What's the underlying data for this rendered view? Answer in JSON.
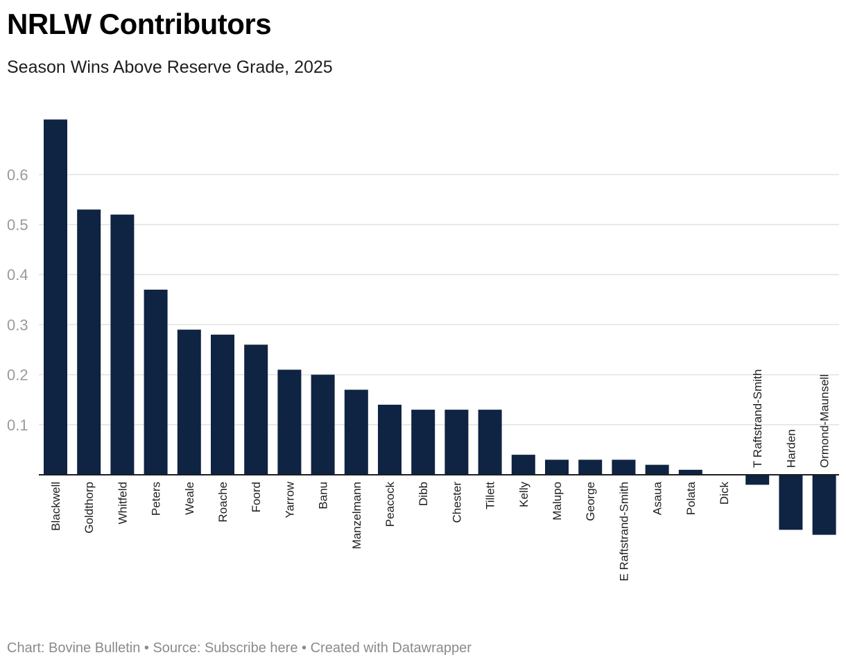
{
  "header": {
    "title": "NRLW Contributors",
    "subtitle": "Season Wins Above Reserve Grade, 2025"
  },
  "footer": {
    "chart_credit": "Chart: Bovine Bulletin",
    "separator": " • ",
    "source_label": "Source: ",
    "source_link": "Subscribe here",
    "created_with": "Created with Datawrapper"
  },
  "colors": {
    "bar": "#0f2342",
    "grid": "#e2e2e2",
    "baseline": "#1d1d1d"
  },
  "chart_data": {
    "type": "bar",
    "title": "NRLW Contributors",
    "subtitle": "Season Wins Above Reserve Grade, 2025",
    "xlabel": "",
    "ylabel": "",
    "ylim": [
      -0.13,
      0.72
    ],
    "yticks": [
      0.1,
      0.2,
      0.3,
      0.4,
      0.5,
      0.6
    ],
    "grid": true,
    "categories": [
      "Blackwell",
      "Goldthorp",
      "Whitfeld",
      "Peters",
      "Weale",
      "Roache",
      "Foord",
      "Yarrow",
      "Banu",
      "Manzelmann",
      "Peacock",
      "Dibb",
      "Chester",
      "Tillett",
      "Kelly",
      "Malupo",
      "George",
      "E Raftstrand-Smith",
      "Asaua",
      "Polata",
      "Dick",
      "T Raftstrand-Smith",
      "Harden",
      "Ormond-Maunsell"
    ],
    "values": [
      0.71,
      0.53,
      0.52,
      0.37,
      0.29,
      0.28,
      0.26,
      0.21,
      0.2,
      0.17,
      0.14,
      0.13,
      0.13,
      0.13,
      0.04,
      0.03,
      0.03,
      0.03,
      0.02,
      0.01,
      0.0,
      -0.02,
      -0.11,
      -0.12
    ]
  }
}
